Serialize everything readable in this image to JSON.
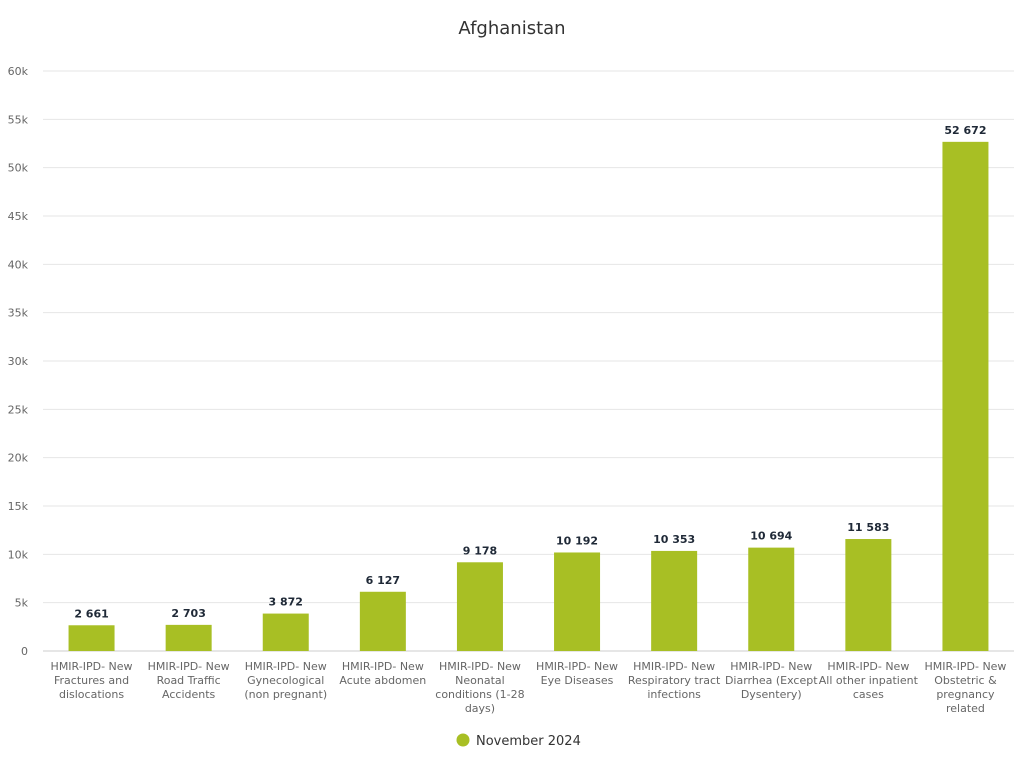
{
  "chart_data": {
    "type": "bar",
    "title": "Afghanistan",
    "xlabel": "",
    "ylabel": "",
    "categories": [
      "HMIR-IPD- New Fractures and dislocations",
      "HMIR-IPD- New Road Traffic Accidents",
      "HMIR-IPD- New Gynecological (non pregnant)",
      "HMIR-IPD- New Acute abdomen",
      "HMIR-IPD- New Neonatal conditions (1-28 days)",
      "HMIR-IPD- New Eye Diseases",
      "HMIR-IPD- New Respiratory tract infections",
      "HMIR-IPD- New Diarrhea (Except Dysentery)",
      "HMIR-IPD- New All other inpatient cases",
      "HMIR-IPD- New Obstetric & pregnancy related"
    ],
    "category_label_lines": [
      [
        "HMIR-IPD- New",
        "Fractures and",
        "dislocations"
      ],
      [
        "HMIR-IPD- New",
        "Road Traffic",
        "Accidents"
      ],
      [
        "HMIR-IPD- New",
        "Gynecological",
        "(non pregnant)"
      ],
      [
        "HMIR-IPD- New",
        "Acute abdomen"
      ],
      [
        "HMIR-IPD- New",
        "Neonatal",
        "conditions (1-28",
        "days)"
      ],
      [
        "HMIR-IPD- New",
        "Eye Diseases"
      ],
      [
        "HMIR-IPD- New",
        "Respiratory tract",
        "infections"
      ],
      [
        "HMIR-IPD- New",
        "Diarrhea (Except",
        "Dysentery)"
      ],
      [
        "HMIR-IPD- New",
        "All other inpatient",
        "cases"
      ],
      [
        "HMIR-IPD- New",
        "Obstetric &",
        "pregnancy",
        "related"
      ]
    ],
    "series": [
      {
        "name": "November 2024",
        "color": "#a8bf24",
        "values": [
          2661,
          2703,
          3872,
          6127,
          9178,
          10192,
          10353,
          10694,
          11583,
          52672
        ],
        "data_labels": [
          "2 661",
          "2 703",
          "3 872",
          "6 127",
          "9 178",
          "10 192",
          "10 353",
          "10 694",
          "11 583",
          "52 672"
        ]
      }
    ],
    "ylim": [
      0,
      60000
    ],
    "y_ticks": [
      0,
      5000,
      10000,
      15000,
      20000,
      25000,
      30000,
      35000,
      40000,
      45000,
      50000,
      55000,
      60000
    ],
    "y_tick_labels": [
      "0",
      "5k",
      "10k",
      "15k",
      "20k",
      "25k",
      "30k",
      "35k",
      "40k",
      "45k",
      "50k",
      "55k",
      "60k"
    ],
    "grid": true,
    "legend_position": "bottom-center",
    "colors": {
      "grid": "#e6e6e6",
      "axis": "#cccccc"
    }
  }
}
